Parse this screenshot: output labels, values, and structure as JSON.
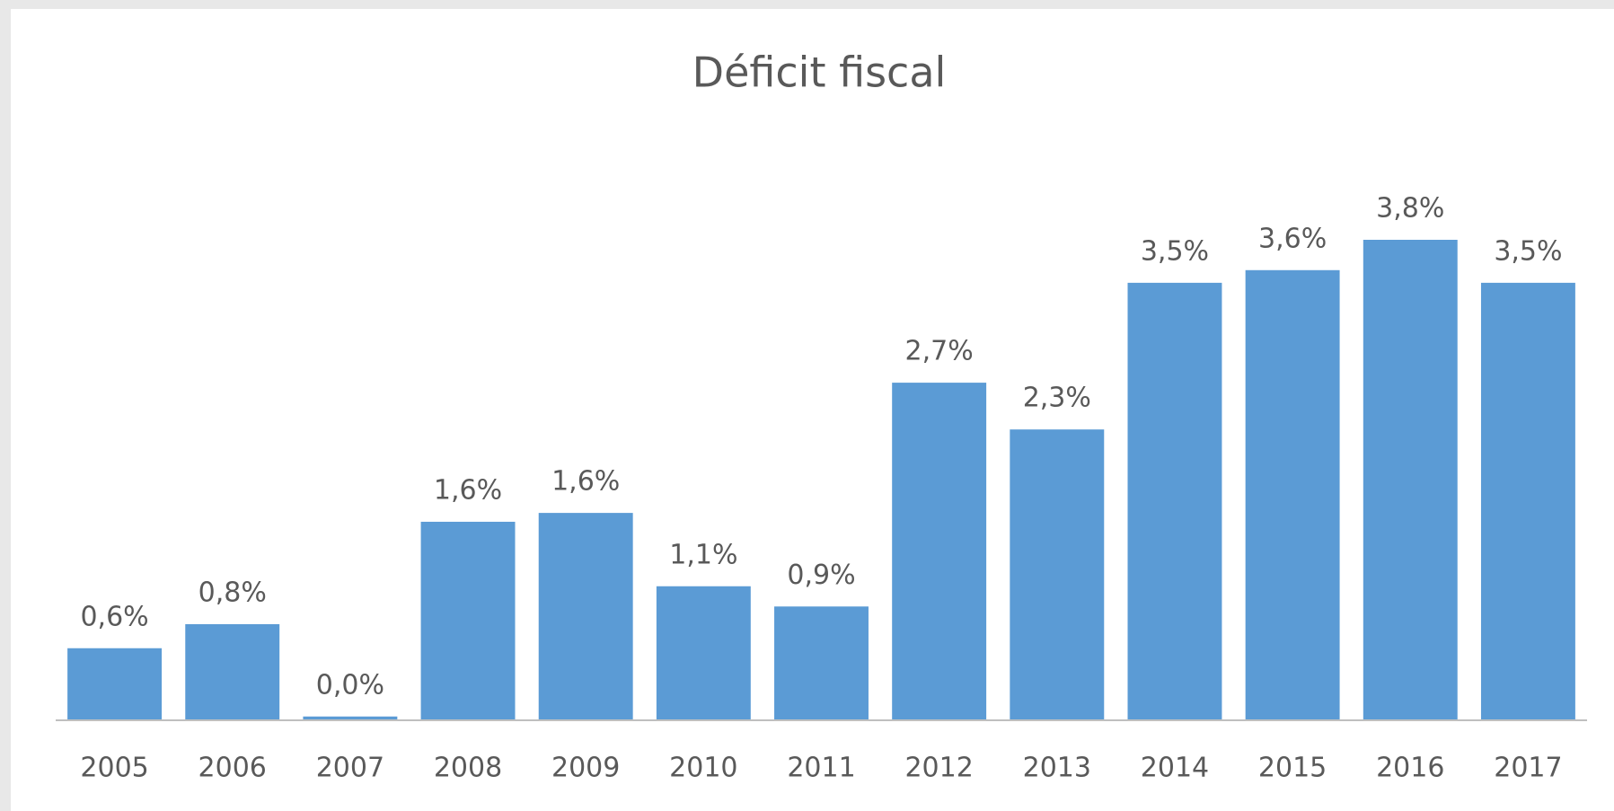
{
  "chart_data": {
    "type": "bar",
    "title": "Déficit fiscal",
    "categories": [
      "2005",
      "2006",
      "2007",
      "2008",
      "2009",
      "2010",
      "2011",
      "2012",
      "2013",
      "2014",
      "2015",
      "2016",
      "2017"
    ],
    "values": [
      0.57,
      0.76,
      0.03,
      1.57,
      1.64,
      1.06,
      0.9,
      2.67,
      2.3,
      3.46,
      3.56,
      3.8,
      3.46
    ],
    "value_labels": [
      "0,6%",
      "0,8%",
      "0,0%",
      "1,6%",
      "1,6%",
      "1,1%",
      "0,9%",
      "2,7%",
      "2,3%",
      "3,5%",
      "3,6%",
      "3,8%",
      "3,5%"
    ],
    "color": "#5b9bd5"
  }
}
